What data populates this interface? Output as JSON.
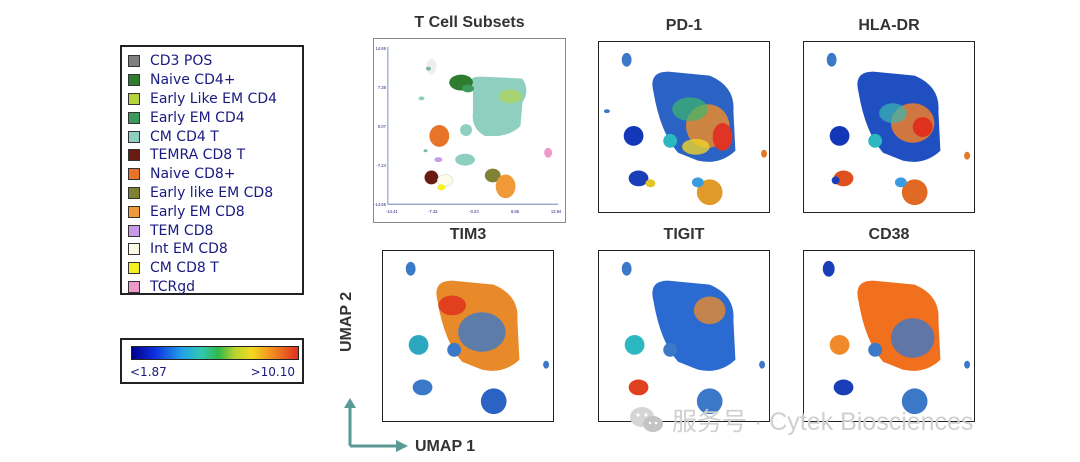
{
  "legend": {
    "items": [
      {
        "label": "CD3 POS",
        "color": "#7f7f7f"
      },
      {
        "label": "Naive CD4+",
        "color": "#2e7d2e"
      },
      {
        "label": "Early Like EM CD4",
        "color": "#b5d33c"
      },
      {
        "label": "Early EM CD4",
        "color": "#3e9a5c"
      },
      {
        "label": "CM CD4 T",
        "color": "#8ecfc0"
      },
      {
        "label": "TEMRA CD8 T",
        "color": "#6b1c12"
      },
      {
        "label": "Naive CD8+",
        "color": "#e8742a"
      },
      {
        "label": "Early like EM CD8",
        "color": "#7e8232"
      },
      {
        "label": "Early EM CD8",
        "color": "#f09a3a"
      },
      {
        "label": "TEM CD8",
        "color": "#c79ae8"
      },
      {
        "label": "Int EM CD8",
        "color": "#fbfbe8"
      },
      {
        "label": "CM CD8 T",
        "color": "#f5f021"
      },
      {
        "label": "TCRgd",
        "color": "#ef9ac8"
      }
    ]
  },
  "color_scale": {
    "min_label": "<1.87",
    "max_label": ">10.10"
  },
  "panels": {
    "subsets": {
      "title": "T Cell Subsets",
      "y_ticks": [
        "14.69",
        "7.38",
        "0.07",
        "-7.24",
        "-14.55"
      ],
      "x_ticks": [
        "-14.41",
        "-7.32",
        "-0.23",
        "6.85",
        "13.94"
      ]
    },
    "pd1": {
      "title": "PD-1"
    },
    "hladr": {
      "title": "HLA-DR"
    },
    "tim3": {
      "title": "TIM3"
    },
    "tigit": {
      "title": "TIGIT"
    },
    "cd38": {
      "title": "CD38"
    }
  },
  "axes": {
    "umap1": "UMAP 1",
    "umap2": "UMAP 2"
  },
  "watermark": {
    "text": "服务号 · Cytek Biosciences",
    "icon": "wechat-icon"
  }
}
